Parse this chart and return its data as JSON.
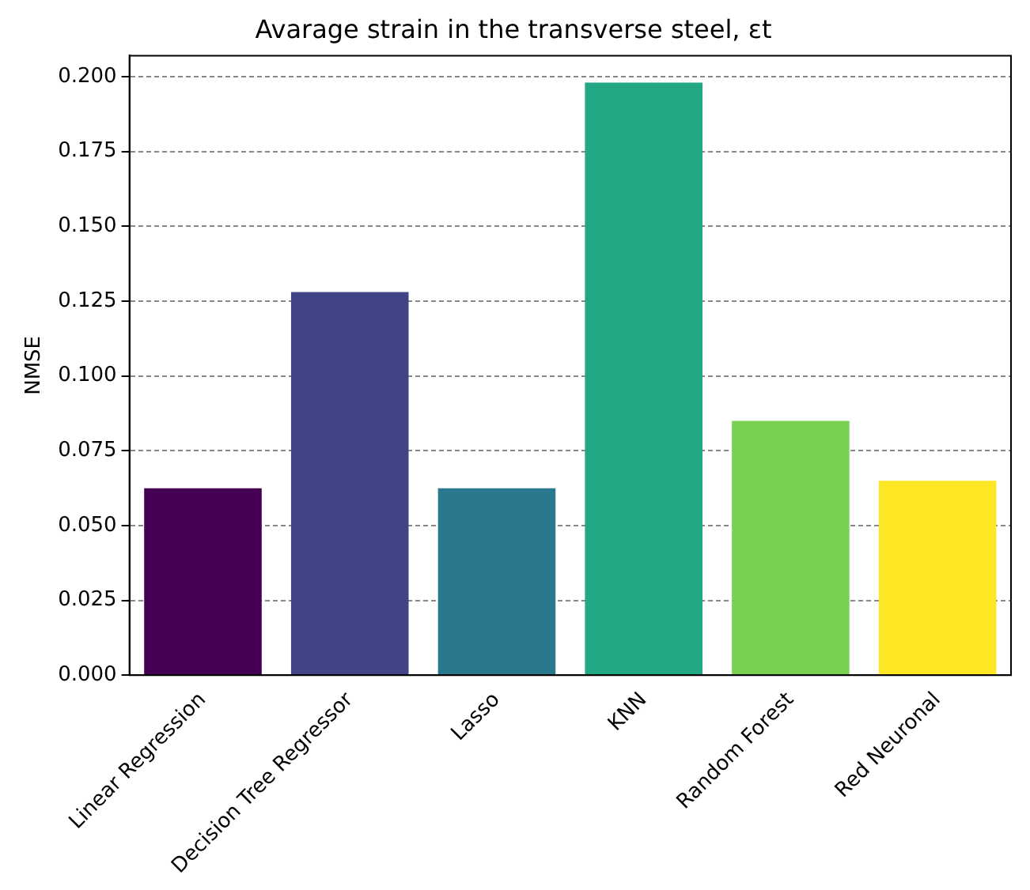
{
  "chart_data": {
    "type": "bar",
    "title": "Avarage strain in the transverse steel, εt",
    "ylabel": "NMSE",
    "categories": [
      "Linear Regression",
      "Decision Tree Regressor",
      "Lasso",
      "KNN",
      "Random Forest",
      "Red Neuronal"
    ],
    "values": [
      0.0625,
      0.128,
      0.0625,
      0.198,
      0.085,
      0.065
    ],
    "colors": [
      "#440154",
      "#414487",
      "#2a788e",
      "#22a884",
      "#7ad151",
      "#fde725"
    ],
    "ylim": [
      0,
      0.207
    ],
    "yticks": [
      {
        "value": 0,
        "label": "0.000"
      },
      {
        "value": 0.025,
        "label": "0.025"
      },
      {
        "value": 0.05,
        "label": "0.050"
      },
      {
        "value": 0.075,
        "label": "0.075"
      },
      {
        "value": 0.1,
        "label": "0.100"
      },
      {
        "value": 0.125,
        "label": "0.125"
      },
      {
        "value": 0.15,
        "label": "0.150"
      },
      {
        "value": 0.175,
        "label": "0.175"
      },
      {
        "value": 0.2,
        "label": "0.200"
      }
    ],
    "grid": "y"
  }
}
